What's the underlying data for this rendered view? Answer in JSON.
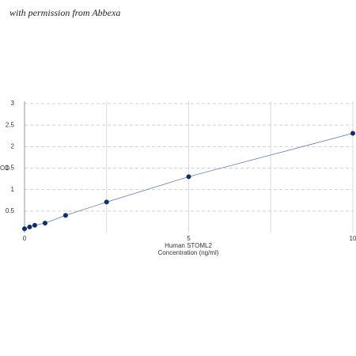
{
  "watermark": "with permission from Abbexa",
  "chart_data": {
    "type": "scatter",
    "xlabel": "Human STOML2",
    "xlabel2": "Concentration (ng/ml)",
    "ylabel": "OD",
    "x": [
      0,
      0.156,
      0.312,
      0.625,
      1.25,
      2.5,
      5,
      10
    ],
    "series": [
      {
        "color": "#0d2f6e",
        "line_color": "#5a7fb8",
        "values": [
          0.09,
          0.13,
          0.17,
          0.22,
          0.4,
          0.71,
          1.3,
          2.31
        ]
      }
    ],
    "xlim": [
      0,
      10
    ],
    "xticks": [
      0,
      5,
      10
    ],
    "xgrid": [
      2.5,
      5,
      7.5,
      10
    ],
    "ylim": [
      0,
      3
    ],
    "yticks": [
      0.5,
      1,
      1.5,
      2,
      2.5,
      3
    ],
    "grid": true
  }
}
